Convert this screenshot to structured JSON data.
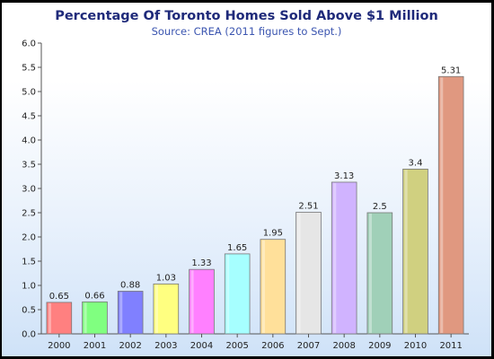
{
  "chart_data": {
    "type": "bar",
    "title": "Percentage Of Toronto Homes Sold Above $1 Million",
    "subtitle": "Source: CREA (2011 figures to Sept.)",
    "categories": [
      "2000",
      "2001",
      "2002",
      "2003",
      "2004",
      "2005",
      "2006",
      "2007",
      "2008",
      "2009",
      "2010",
      "2011"
    ],
    "values": [
      0.65,
      0.66,
      0.88,
      1.03,
      1.33,
      1.65,
      1.95,
      2.51,
      3.13,
      2.5,
      3.4,
      5.31
    ],
    "value_labels": [
      "0.65",
      "0.66",
      "0.88",
      "1.03",
      "1.33",
      "1.65",
      "1.95",
      "2.51",
      "3.13",
      "2.5",
      "3.4",
      "5.31"
    ],
    "colors": [
      "#ff8080",
      "#80ff80",
      "#8080ff",
      "#ffff80",
      "#ff80ff",
      "#a6ffff",
      "#ffe09a",
      "#e6e6e6",
      "#d0b3ff",
      "#a0d0b8",
      "#d0d080",
      "#e09880"
    ],
    "xlabel": "",
    "ylabel": "",
    "ylim": [
      0,
      6.0
    ],
    "yticks": [
      "0.0",
      "0.5",
      "1.0",
      "1.5",
      "2.0",
      "2.5",
      "3.0",
      "3.5",
      "4.0",
      "4.5",
      "5.0",
      "5.5",
      "6.0"
    ],
    "grid": false,
    "legend": "none"
  }
}
